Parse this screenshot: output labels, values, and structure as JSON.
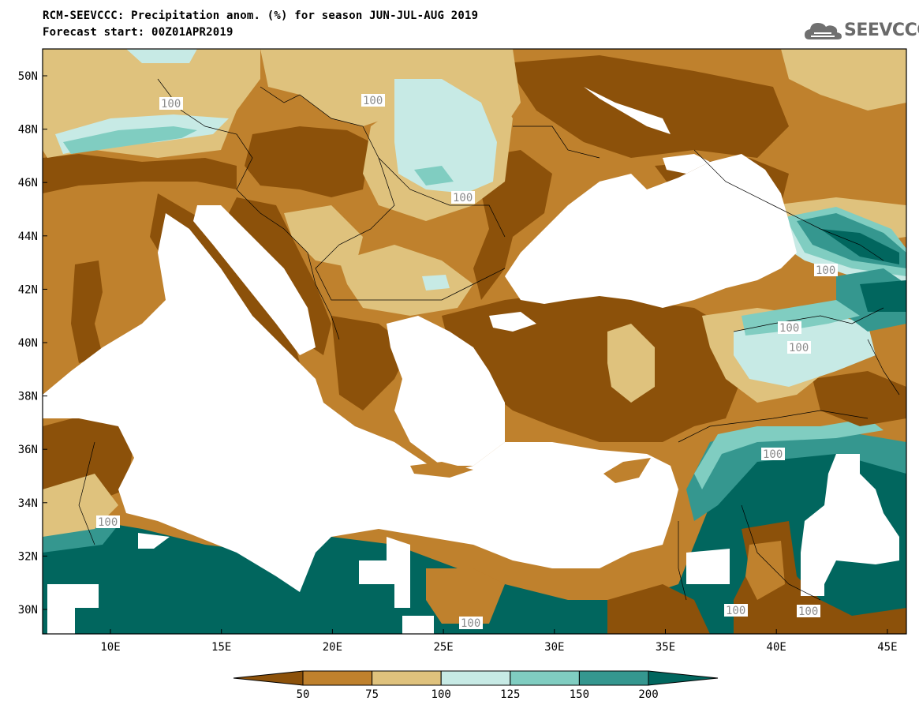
{
  "header": {
    "title_line1": "RCM-SEEVCCC: Precipitation anom. (%) for season JUN-JUL-AUG 2019",
    "title_line2": "Forecast start: 00Z01APR2019"
  },
  "logo": {
    "text": "SEEVCCC",
    "icon": "cloud-logo-icon"
  },
  "map": {
    "lat_ticks": [
      "50N",
      "48N",
      "46N",
      "44N",
      "42N",
      "40N",
      "38N",
      "36N",
      "34N",
      "32N",
      "30N"
    ],
    "lon_ticks": [
      "10E",
      "15E",
      "20E",
      "25E",
      "30E",
      "35E",
      "40E",
      "45E"
    ],
    "contour_labels": [
      "100",
      "100",
      "100",
      "100",
      "100",
      "100",
      "100",
      "100",
      "100",
      "100",
      "100"
    ],
    "colors": {
      "lt50": "#8c510a",
      "50_75": "#bf812d",
      "75_100": "#dfc27d",
      "100_125": "#c7eae5",
      "125_150": "#80cdc1",
      "150_200": "#35978f",
      "gt200": "#01665e",
      "sea": "#ffffff"
    }
  },
  "colorbar": {
    "labels": [
      "50",
      "75",
      "100",
      "125",
      "150",
      "200"
    ],
    "colors": [
      "#8c510a",
      "#bf812d",
      "#dfc27d",
      "#c7eae5",
      "#80cdc1",
      "#35978f",
      "#01665e"
    ]
  }
}
